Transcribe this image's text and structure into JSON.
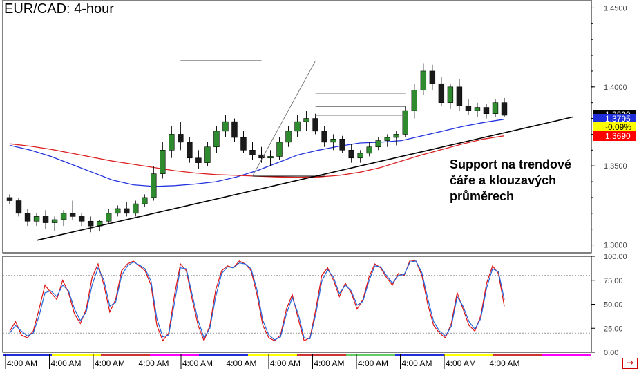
{
  "title": "EUR/CAD: 4-hour",
  "annotation": {
    "line1": "Support na trendové",
    "line2": "čáře a klouzavých",
    "line3": "průměrech"
  },
  "scroll_arrow": "→",
  "chart_data": [
    {
      "type": "candlestick",
      "title": "EUR/CAD: 4-hour",
      "ylim": [
        1.295,
        1.455
      ],
      "y_ticks": [
        {
          "value": 1.45,
          "label": "1.4500"
        },
        {
          "value": 1.4,
          "label": "1.4000"
        },
        {
          "value": 1.35,
          "label": "1.3500"
        },
        {
          "value": 1.3,
          "label": "1.3000"
        }
      ],
      "price_labels": [
        {
          "label": "1.3820",
          "value": 1.3822,
          "bg": "#000000",
          "color": "#ffffff"
        },
        {
          "label": "1.3795",
          "value": 1.3795,
          "bg": "#1f2ed8",
          "color": "#ffffff"
        },
        {
          "label": "-0.09%",
          "value": 1.3745,
          "bg": "#ffff00",
          "color": "#000000"
        },
        {
          "label": "1.3690",
          "value": 1.369,
          "bg": "#ff0000",
          "color": "#ffffff"
        }
      ],
      "series": [
        {
          "kind": "moving-average",
          "color": "#2233dd",
          "values": [
            1.363,
            1.36,
            1.356,
            1.351,
            1.346,
            1.341,
            1.338,
            1.337,
            1.3375,
            1.3385,
            1.34,
            1.343,
            1.347,
            1.352,
            1.357,
            1.36,
            1.3625,
            1.3645,
            1.365,
            1.366,
            1.369,
            1.372,
            1.375,
            1.3775,
            1.3795
          ]
        },
        {
          "kind": "moving-average",
          "color": "#dd2222",
          "values": [
            1.364,
            1.3625,
            1.3605,
            1.358,
            1.3555,
            1.353,
            1.351,
            1.349,
            1.347,
            1.3455,
            1.3445,
            1.344,
            1.3435,
            1.343,
            1.3428,
            1.343,
            1.344,
            1.346,
            1.349,
            1.353,
            1.357,
            1.3605,
            1.364,
            1.367,
            1.369
          ]
        }
      ],
      "candles": [
        [
          1.33,
          1.332,
          1.326,
          1.328
        ],
        [
          1.328,
          1.33,
          1.318,
          1.32
        ],
        [
          1.32,
          1.323,
          1.312,
          1.315
        ],
        [
          1.315,
          1.32,
          1.312,
          1.318
        ],
        [
          1.318,
          1.322,
          1.31,
          1.314
        ],
        [
          1.314,
          1.318,
          1.309,
          1.316
        ],
        [
          1.316,
          1.322,
          1.312,
          1.32
        ],
        [
          1.32,
          1.328,
          1.316,
          1.318
        ],
        [
          1.318,
          1.32,
          1.312,
          1.315
        ],
        [
          1.315,
          1.318,
          1.308,
          1.312
        ],
        [
          1.312,
          1.316,
          1.309,
          1.315
        ],
        [
          1.315,
          1.323,
          1.313,
          1.32
        ],
        [
          1.32,
          1.325,
          1.318,
          1.323
        ],
        [
          1.323,
          1.327,
          1.318,
          1.32
        ],
        [
          1.32,
          1.328,
          1.318,
          1.326
        ],
        [
          1.326,
          1.332,
          1.324,
          1.33
        ],
        [
          1.33,
          1.35,
          1.328,
          1.345
        ],
        [
          1.345,
          1.365,
          1.342,
          1.36
        ],
        [
          1.36,
          1.375,
          1.355,
          1.37
        ],
        [
          1.37,
          1.378,
          1.36,
          1.365
        ],
        [
          1.365,
          1.368,
          1.352,
          1.355
        ],
        [
          1.355,
          1.36,
          1.348,
          1.352
        ],
        [
          1.352,
          1.365,
          1.35,
          1.362
        ],
        [
          1.362,
          1.375,
          1.358,
          1.372
        ],
        [
          1.372,
          1.382,
          1.368,
          1.378
        ],
        [
          1.378,
          1.38,
          1.365,
          1.368
        ],
        [
          1.368,
          1.372,
          1.358,
          1.36
        ],
        [
          1.36,
          1.365,
          1.354,
          1.357
        ],
        [
          1.357,
          1.362,
          1.352,
          1.355
        ],
        [
          1.355,
          1.36,
          1.35,
          1.356
        ],
        [
          1.356,
          1.368,
          1.354,
          1.365
        ],
        [
          1.365,
          1.375,
          1.362,
          1.372
        ],
        [
          1.372,
          1.382,
          1.368,
          1.378
        ],
        [
          1.378,
          1.385,
          1.372,
          1.38
        ],
        [
          1.38,
          1.383,
          1.37,
          1.372
        ],
        [
          1.372,
          1.375,
          1.362,
          1.365
        ],
        [
          1.365,
          1.37,
          1.36,
          1.367
        ],
        [
          1.367,
          1.369,
          1.358,
          1.36
        ],
        [
          1.36,
          1.364,
          1.352,
          1.355
        ],
        [
          1.355,
          1.36,
          1.352,
          1.358
        ],
        [
          1.358,
          1.365,
          1.356,
          1.362
        ],
        [
          1.362,
          1.368,
          1.36,
          1.366
        ],
        [
          1.366,
          1.37,
          1.362,
          1.368
        ],
        [
          1.368,
          1.372,
          1.363,
          1.37
        ],
        [
          1.37,
          1.388,
          1.368,
          1.385
        ],
        [
          1.385,
          1.402,
          1.38,
          1.398
        ],
        [
          1.398,
          1.415,
          1.395,
          1.41
        ],
        [
          1.41,
          1.414,
          1.398,
          1.402
        ],
        [
          1.402,
          1.406,
          1.388,
          1.39
        ],
        [
          1.39,
          1.402,
          1.386,
          1.4
        ],
        [
          1.4,
          1.405,
          1.385,
          1.388
        ],
        [
          1.388,
          1.392,
          1.382,
          1.385
        ],
        [
          1.385,
          1.39,
          1.381,
          1.387
        ],
        [
          1.387,
          1.389,
          1.38,
          1.383
        ],
        [
          1.383,
          1.392,
          1.381,
          1.39
        ],
        [
          1.39,
          1.393,
          1.381,
          1.382
        ]
      ],
      "trendline": {
        "from": [
          0,
          1.303
        ],
        "to": [
          55,
          1.381
        ]
      },
      "drawn_lines": [
        {
          "from": [
            19,
            1.4165
          ],
          "to": [
            28,
            1.4165
          ]
        },
        {
          "from": [
            27,
            1.3435
          ],
          "to": [
            35,
            1.3435
          ]
        },
        {
          "from": [
            27,
            1.3435
          ],
          "to": [
            34,
            1.4165
          ]
        },
        {
          "from": [
            34,
            1.396
          ],
          "to": [
            44,
            1.396
          ]
        },
        {
          "from": [
            34,
            1.3875
          ],
          "to": [
            44,
            1.3875
          ]
        },
        {
          "from": [
            34,
            1.382
          ],
          "to": [
            44,
            1.382
          ]
        }
      ]
    },
    {
      "type": "line",
      "ylim": [
        0,
        100
      ],
      "y_ticks": [
        {
          "value": 100,
          "label": "100.00"
        },
        {
          "value": 75,
          "label": "75.00"
        },
        {
          "value": 50,
          "label": "50.00"
        },
        {
          "value": 25,
          "label": "25.00"
        },
        {
          "value": 0,
          "label": "0.00"
        }
      ],
      "reference_lines": [
        80,
        20
      ],
      "series": [
        {
          "kind": "stochastic-k",
          "color": "#dd1111",
          "values": [
            22,
            32,
            18,
            15,
            22,
            45,
            70,
            62,
            55,
            75,
            62,
            40,
            30,
            45,
            78,
            92,
            70,
            42,
            55,
            85,
            92,
            95,
            90,
            85,
            70,
            28,
            12,
            20,
            60,
            92,
            85,
            55,
            28,
            12,
            28,
            65,
            85,
            90,
            88,
            95,
            92,
            85,
            60,
            28,
            15,
            12,
            18,
            45,
            60,
            35,
            12,
            15,
            45,
            80,
            88,
            75,
            58,
            72,
            62,
            45,
            55,
            78,
            92,
            88,
            78,
            70,
            82,
            80,
            96,
            95,
            80,
            50,
            28,
            20,
            15,
            30,
            62,
            45,
            28,
            22,
            38,
            72,
            90,
            82,
            48
          ]
        },
        {
          "kind": "stochastic-d",
          "color": "#2266dd",
          "values": [
            20,
            28,
            22,
            17,
            20,
            38,
            62,
            64,
            58,
            70,
            64,
            45,
            33,
            42,
            70,
            88,
            75,
            48,
            52,
            80,
            90,
            94,
            91,
            87,
            74,
            35,
            16,
            18,
            52,
            88,
            87,
            60,
            33,
            15,
            25,
            58,
            82,
            89,
            88,
            93,
            92,
            87,
            65,
            33,
            18,
            13,
            16,
            40,
            57,
            40,
            15,
            14,
            40,
            74,
            86,
            78,
            61,
            70,
            64,
            49,
            53,
            74,
            90,
            89,
            80,
            72,
            80,
            81,
            94,
            95,
            83,
            56,
            32,
            22,
            17,
            27,
            58,
            48,
            32,
            24,
            35,
            67,
            87,
            84,
            55
          ]
        }
      ]
    }
  ],
  "time_labels": [
    "4:00 AM",
    "4:00 AM",
    "4:00 AM",
    "4:00 AM",
    "4:00 AM",
    "4:00 AM",
    "4:00 AM",
    "4:00 AM",
    "4:00 AM",
    "4:00 AM",
    "4:00 AM",
    "4:00 AM"
  ],
  "time_strip_colors": [
    "#1f2ed8",
    "#ffff00",
    "#cc3333",
    "#ff00ff",
    "#1f2ed8",
    "#ffff00",
    "#cc3333",
    "#66cc66",
    "#1f2ed8",
    "#ffff00",
    "#cc3333",
    "#ff00ff"
  ]
}
